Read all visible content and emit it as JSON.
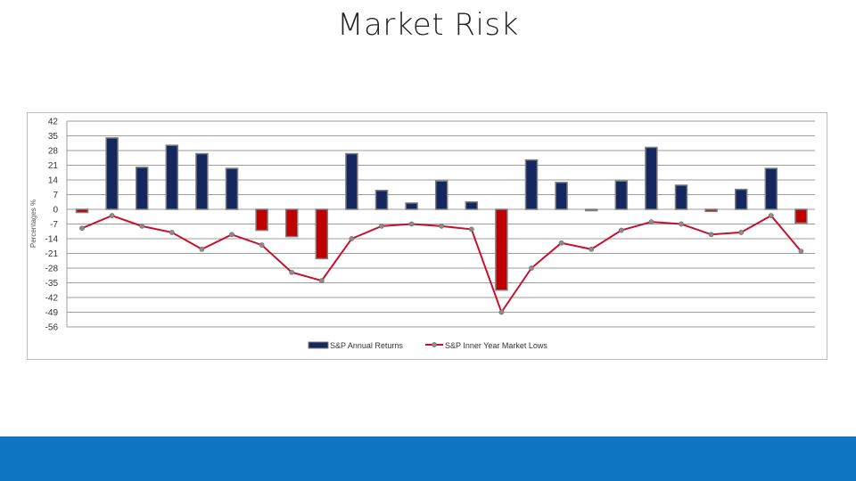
{
  "slide": {
    "title": "Market Risk"
  },
  "colors": {
    "positive_bar": "#14275e",
    "negative_bar": "#c00000",
    "bar_border": "#7f7f7f",
    "line": "#c8102e",
    "marker": "#8c8c8c",
    "grid": "#9e9e9e",
    "footer": "#0d76c2"
  },
  "chart_data": {
    "type": "bar",
    "title": "",
    "xlabel": "",
    "ylabel": "Percentages %",
    "ylim": [
      -56,
      42
    ],
    "yticks": [
      42,
      35,
      28,
      21,
      14,
      7,
      0,
      -7,
      -14,
      -21,
      -28,
      -35,
      -42,
      -49,
      -56
    ],
    "grid": true,
    "legend_position": "bottom",
    "series": [
      {
        "name": "S&P Annual Returns",
        "type": "bar",
        "values": [
          -1.5,
          34,
          20,
          30.5,
          26.5,
          19.5,
          -10,
          -13,
          -23.5,
          26.5,
          9,
          3,
          13.5,
          3.5,
          -38.5,
          23.5,
          12.8,
          0,
          13.5,
          29.5,
          11.5,
          -1,
          9.5,
          19.5,
          -6.5
        ]
      },
      {
        "name": "S&P Inner Year Market Lows",
        "type": "line",
        "values": [
          -9,
          -3,
          -8,
          -11,
          -19,
          -12,
          -17,
          -30,
          -34,
          -14,
          -8,
          -7,
          -8,
          -9.5,
          -49,
          -28,
          -16,
          -19,
          -10,
          -6,
          -7,
          -12,
          -11,
          -3,
          -20
        ]
      }
    ]
  }
}
